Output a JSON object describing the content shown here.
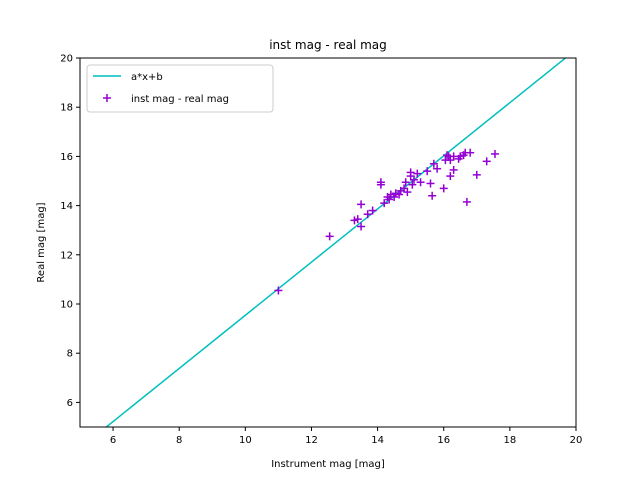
{
  "chart_data": {
    "type": "scatter",
    "title": "inst mag - real mag",
    "xlabel": "Instrument mag [mag]",
    "ylabel": "Real mag [mag]",
    "xlim": [
      5,
      20
    ],
    "ylim": [
      5,
      20
    ],
    "xticks": [
      6,
      8,
      10,
      12,
      14,
      16,
      18,
      20
    ],
    "yticks": [
      6,
      8,
      10,
      12,
      14,
      16,
      18,
      20
    ],
    "grid": false,
    "legend_position": "top-left",
    "series": [
      {
        "name": "a*x+b",
        "kind": "line",
        "color": "#00bfbf",
        "x": [
          5.75,
          19.82
        ],
        "y": [
          4.95,
          20.15
        ]
      },
      {
        "name": "inst mag - real mag",
        "kind": "scatter",
        "marker": "+",
        "color": "#9400d3",
        "x": [
          11.0,
          12.55,
          13.3,
          13.4,
          13.5,
          13.5,
          13.7,
          13.85,
          14.1,
          14.1,
          14.2,
          14.3,
          14.35,
          14.4,
          14.5,
          14.55,
          14.65,
          14.7,
          14.8,
          14.85,
          14.9,
          15.0,
          15.0,
          15.05,
          15.1,
          15.2,
          15.3,
          15.5,
          15.6,
          15.65,
          15.7,
          15.8,
          16.0,
          16.05,
          16.1,
          16.15,
          16.2,
          16.2,
          16.3,
          16.3,
          16.45,
          16.5,
          16.6,
          16.65,
          16.7,
          16.8,
          17.0,
          17.3,
          17.55
        ],
        "y": [
          10.55,
          12.75,
          13.4,
          13.45,
          14.05,
          13.15,
          13.65,
          13.8,
          14.95,
          14.85,
          14.1,
          14.35,
          14.25,
          14.45,
          14.35,
          14.5,
          14.45,
          14.6,
          14.7,
          14.95,
          14.55,
          15.2,
          15.35,
          14.85,
          15.05,
          15.3,
          14.95,
          15.4,
          14.9,
          14.4,
          15.7,
          15.5,
          14.7,
          15.85,
          16.05,
          16.0,
          15.2,
          15.85,
          16.0,
          15.45,
          15.9,
          16.0,
          16.05,
          16.15,
          14.15,
          16.15,
          15.25,
          15.8,
          16.1
        ]
      }
    ]
  }
}
